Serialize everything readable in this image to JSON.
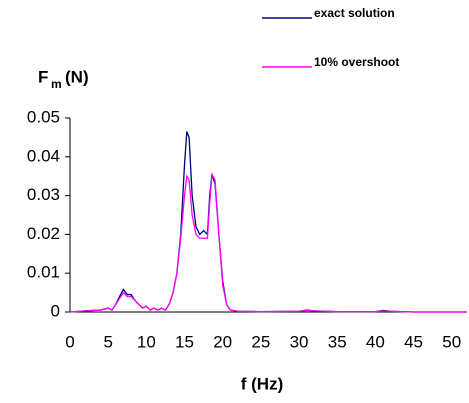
{
  "chart_data": {
    "type": "line",
    "xlabel": "f (Hz)",
    "ylabel": "F",
    "ylabel_subscript": "m",
    "ylabel_unit": "(N)",
    "x": [
      0,
      2,
      4,
      5,
      5.5,
      6,
      6.5,
      7,
      7.5,
      8,
      8.5,
      9,
      9.5,
      10,
      10.5,
      11,
      11.5,
      12,
      12.5,
      13,
      13.5,
      14,
      14.5,
      15,
      15.3,
      15.6,
      16,
      16.5,
      17,
      17.5,
      18,
      18.3,
      18.6,
      19,
      19.5,
      20,
      20.5,
      21,
      22,
      25,
      30,
      31,
      32,
      35,
      40,
      41,
      42,
      45,
      50,
      52
    ],
    "series": [
      {
        "name": "exact solution",
        "color": "#000080",
        "values": [
          0,
          0.0003,
          0.0005,
          0.001,
          0.0005,
          0.002,
          0.004,
          0.0058,
          0.0045,
          0.0045,
          0.003,
          0.002,
          0.001,
          0.0015,
          0.0005,
          0.001,
          0.0005,
          0.001,
          0.0005,
          0.002,
          0.005,
          0.01,
          0.02,
          0.038,
          0.0465,
          0.045,
          0.03,
          0.022,
          0.02,
          0.021,
          0.02,
          0.03,
          0.0355,
          0.033,
          0.02,
          0.008,
          0.002,
          0.0005,
          0.0002,
          0.0001,
          0.0002,
          0.0005,
          0.0003,
          0.0001,
          0.0001,
          0.0004,
          0.0002,
          0,
          0,
          0
        ]
      },
      {
        "name": "10% overshoot",
        "color": "#ff00ff",
        "values": [
          0,
          0.0003,
          0.0005,
          0.001,
          0.0005,
          0.002,
          0.0035,
          0.005,
          0.004,
          0.004,
          0.003,
          0.002,
          0.001,
          0.0015,
          0.0005,
          0.001,
          0.0005,
          0.001,
          0.0005,
          0.002,
          0.005,
          0.01,
          0.019,
          0.03,
          0.035,
          0.034,
          0.025,
          0.02,
          0.019,
          0.019,
          0.019,
          0.028,
          0.0355,
          0.034,
          0.02,
          0.007,
          0.002,
          0.0005,
          0.0002,
          0.0001,
          0.0002,
          0.0004,
          0.0003,
          0.0001,
          0.0001,
          0.0003,
          0.0002,
          0,
          0,
          0
        ]
      }
    ],
    "xlim": [
      0,
      52
    ],
    "xticks": [
      0,
      5,
      10,
      15,
      20,
      25,
      30,
      35,
      40,
      45,
      50
    ],
    "ylim": [
      0,
      0.05
    ],
    "yticks": [
      0,
      0.01,
      0.02,
      0.03,
      0.04,
      0.05
    ],
    "legend": "top-right",
    "grid": false
  }
}
